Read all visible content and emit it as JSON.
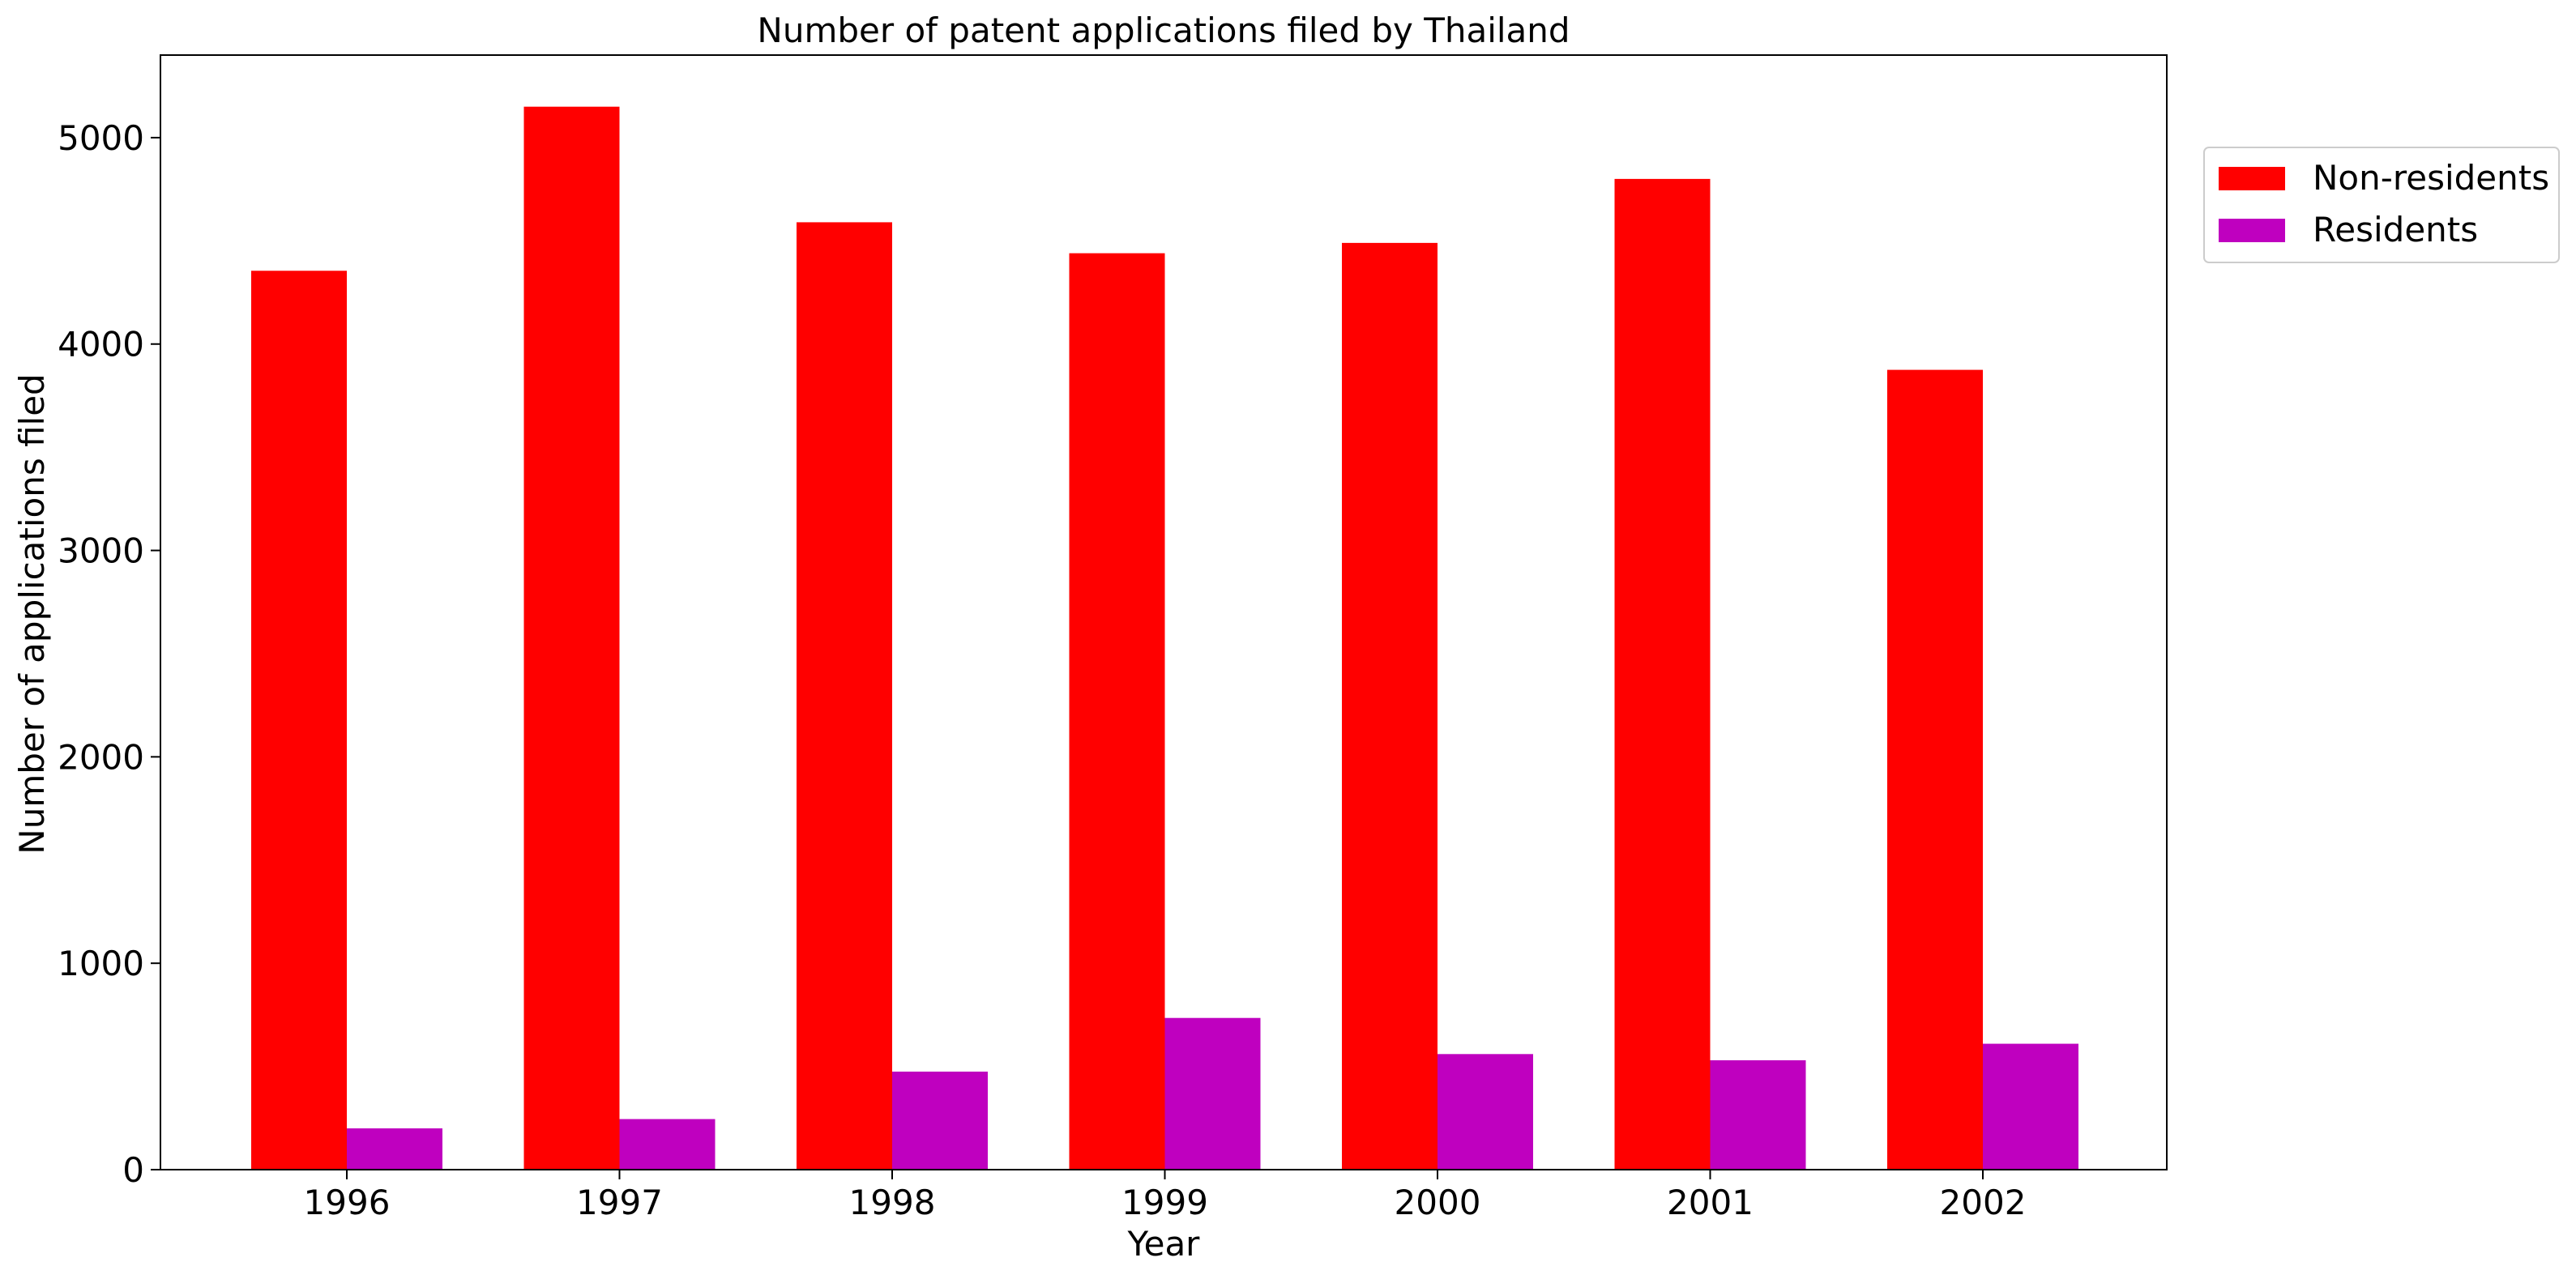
{
  "chart_data": {
    "type": "bar",
    "title": "Number of patent applications filed by Thailand",
    "xlabel": "Year",
    "ylabel": "Number of applications filed",
    "categories": [
      "1996",
      "1997",
      "1998",
      "1999",
      "2000",
      "2001",
      "2002"
    ],
    "series": [
      {
        "name": "Non-residents",
        "color": "#ff0000",
        "values": [
          4355,
          5150,
          4590,
          4440,
          4490,
          4800,
          3875
        ]
      },
      {
        "name": "Residents",
        "color": "#bf00bf",
        "values": [
          200,
          245,
          475,
          735,
          560,
          530,
          610
        ]
      }
    ],
    "ylim": [
      0,
      5400
    ],
    "yticks": [
      0,
      1000,
      2000,
      3000,
      4000,
      5000
    ],
    "yticks_labels": [
      "0",
      "1000",
      "2000",
      "3000",
      "4000",
      "5000"
    ],
    "grid": false,
    "legend_position": "outside-right-top"
  }
}
